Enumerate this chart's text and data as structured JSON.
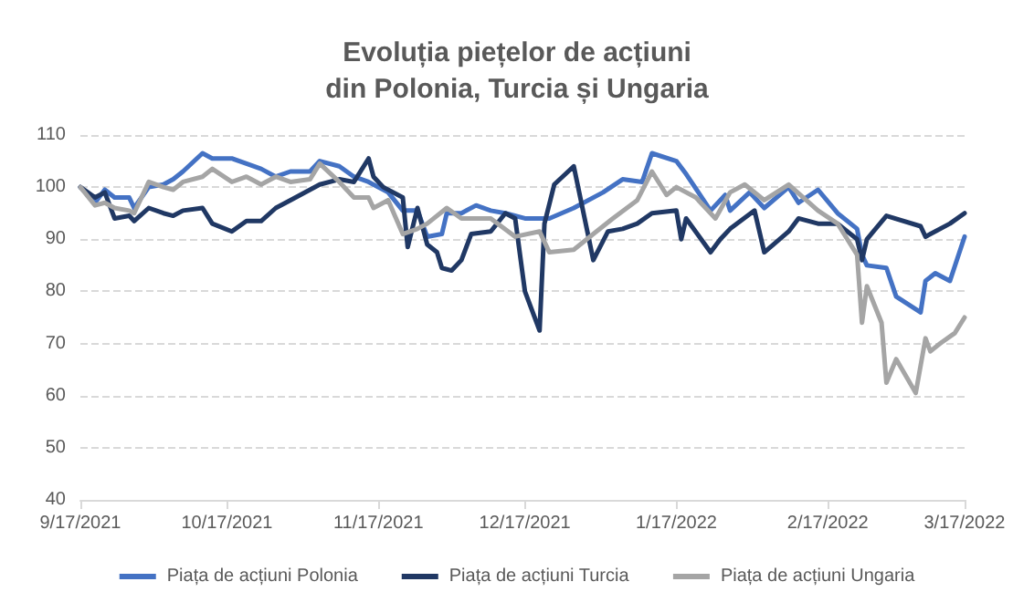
{
  "chart_data": {
    "type": "line",
    "title": "Evoluția piețelor de acțiuni\ndin Polonia, Turcia și Ungaria",
    "xlim": [
      "2021-09-17",
      "2022-03-17"
    ],
    "xticks": [
      {
        "value": "2021-09-17",
        "label": "9/17/2021"
      },
      {
        "value": "2021-10-17",
        "label": "10/17/2021"
      },
      {
        "value": "2021-11-17",
        "label": "11/17/2021"
      },
      {
        "value": "2021-12-17",
        "label": "12/17/2021"
      },
      {
        "value": "2022-01-17",
        "label": "1/17/2022"
      },
      {
        "value": "2022-02-17",
        "label": "2/17/2022"
      },
      {
        "value": "2022-03-17",
        "label": "3/17/2022"
      }
    ],
    "ylim": [
      40,
      110
    ],
    "yticks": [
      40,
      50,
      60,
      70,
      80,
      90,
      100,
      110
    ],
    "grid": "y",
    "legend": "bottom",
    "marker": "none",
    "line_style": "solid",
    "series": [
      {
        "name": "Piața de acțiuni Polonia",
        "color": "#4472c4",
        "x": [
          "2021-09-17",
          "2021-09-20",
          "2021-09-22",
          "2021-09-24",
          "2021-09-27",
          "2021-09-28",
          "2021-10-01",
          "2021-10-04",
          "2021-10-06",
          "2021-10-08",
          "2021-10-12",
          "2021-10-14",
          "2021-10-18",
          "2021-10-21",
          "2021-10-24",
          "2021-10-27",
          "2021-10-30",
          "2021-11-03",
          "2021-11-05",
          "2021-11-09",
          "2021-11-12",
          "2021-11-15",
          "2021-11-19",
          "2021-11-22",
          "2021-11-25",
          "2021-11-27",
          "2021-11-30",
          "2021-12-01",
          "2021-12-04",
          "2021-12-07",
          "2021-12-10",
          "2021-12-13",
          "2021-12-17",
          "2021-12-22",
          "2021-12-27",
          "2022-01-02",
          "2022-01-06",
          "2022-01-10",
          "2022-01-12",
          "2022-01-17",
          "2022-01-19",
          "2022-01-24",
          "2022-01-27",
          "2022-01-28",
          "2022-02-01",
          "2022-02-04",
          "2022-02-09",
          "2022-02-11",
          "2022-02-15",
          "2022-02-19",
          "2022-02-23",
          "2022-02-24",
          "2022-02-25",
          "2022-03-01",
          "2022-03-03",
          "2022-03-08",
          "2022-03-09",
          "2022-03-11",
          "2022-03-14",
          "2022-03-17"
        ],
        "values": [
          100,
          97,
          99.5,
          98,
          98,
          96,
          100,
          100.5,
          101.5,
          103,
          106.5,
          105.5,
          105.5,
          104.5,
          103.5,
          102,
          103,
          103,
          105,
          104,
          102,
          101,
          99,
          95.5,
          95.5,
          90.5,
          91,
          95,
          95,
          96.5,
          95.5,
          95,
          94,
          94,
          96,
          99,
          101.5,
          101,
          106.5,
          105,
          102.5,
          95.5,
          98.5,
          95.5,
          99,
          96,
          100,
          97,
          99.5,
          95,
          92,
          87,
          85,
          84.5,
          79,
          76,
          82,
          83.5,
          82,
          90.5
        ]
      },
      {
        "name": "Piața de acțiuni Turcia",
        "color": "#203864",
        "x": [
          "2021-09-17",
          "2021-09-20",
          "2021-09-22",
          "2021-09-24",
          "2021-09-27",
          "2021-09-28",
          "2021-10-01",
          "2021-10-04",
          "2021-10-06",
          "2021-10-08",
          "2021-10-12",
          "2021-10-14",
          "2021-10-18",
          "2021-10-21",
          "2021-10-24",
          "2021-10-27",
          "2021-10-30",
          "2021-11-03",
          "2021-11-05",
          "2021-11-09",
          "2021-11-12",
          "2021-11-15",
          "2021-11-16",
          "2021-11-18",
          "2021-11-22",
          "2021-11-23",
          "2021-11-25",
          "2021-11-27",
          "2021-11-29",
          "2021-11-30",
          "2021-12-02",
          "2021-12-04",
          "2021-12-06",
          "2021-12-10",
          "2021-12-13",
          "2021-12-15",
          "2021-12-17",
          "2021-12-20",
          "2021-12-21",
          "2021-12-23",
          "2021-12-27",
          "2021-12-31",
          "2022-01-03",
          "2022-01-06",
          "2022-01-09",
          "2022-01-12",
          "2022-01-17",
          "2022-01-18",
          "2022-01-19",
          "2022-01-24",
          "2022-01-26",
          "2022-01-28",
          "2022-02-02",
          "2022-02-04",
          "2022-02-09",
          "2022-02-11",
          "2022-02-15",
          "2022-02-19",
          "2022-02-23",
          "2022-02-24",
          "2022-02-25",
          "2022-03-01",
          "2022-03-08",
          "2022-03-09",
          "2022-03-14",
          "2022-03-17"
        ],
        "values": [
          100,
          98,
          99,
          94,
          94.5,
          93.5,
          96,
          95,
          94.5,
          95.5,
          96,
          93,
          91.5,
          93.5,
          93.5,
          96,
          97.5,
          99.5,
          100.5,
          101.5,
          101,
          105.5,
          102,
          100,
          98,
          88.5,
          96,
          89,
          87.5,
          84.5,
          84,
          86,
          91,
          91.5,
          95,
          94,
          80,
          72.5,
          93,
          100.5,
          104,
          86,
          91.5,
          92,
          93,
          95,
          95.5,
          90,
          94,
          87.5,
          90,
          92,
          95.5,
          87.5,
          91.5,
          94,
          93,
          93,
          90,
          86,
          90,
          94.5,
          92.5,
          90.5,
          93,
          95
        ]
      },
      {
        "name": "Piața de acțiuni Ungaria",
        "color": "#a5a5a5",
        "x": [
          "2021-09-17",
          "2021-09-20",
          "2021-09-22",
          "2021-09-24",
          "2021-09-27",
          "2021-09-28",
          "2021-10-01",
          "2021-10-04",
          "2021-10-06",
          "2021-10-08",
          "2021-10-12",
          "2021-10-14",
          "2021-10-18",
          "2021-10-21",
          "2021-10-24",
          "2021-10-27",
          "2021-10-30",
          "2021-11-03",
          "2021-11-05",
          "2021-11-09",
          "2021-11-12",
          "2021-11-15",
          "2021-11-16",
          "2021-11-19",
          "2021-11-22",
          "2021-11-25",
          "2021-11-27",
          "2021-12-01",
          "2021-12-04",
          "2021-12-10",
          "2021-12-15",
          "2021-12-20",
          "2021-12-22",
          "2021-12-27",
          "2021-12-31",
          "2022-01-04",
          "2022-01-09",
          "2022-01-12",
          "2022-01-15",
          "2022-01-17",
          "2022-01-21",
          "2022-01-25",
          "2022-01-28",
          "2022-01-31",
          "2022-02-04",
          "2022-02-09",
          "2022-02-15",
          "2022-02-19",
          "2022-02-23",
          "2022-02-24",
          "2022-02-25",
          "2022-02-28",
          "2022-03-01",
          "2022-03-03",
          "2022-03-07",
          "2022-03-09",
          "2022-03-10",
          "2022-03-12",
          "2022-03-15",
          "2022-03-17"
        ],
        "values": [
          100,
          96.5,
          97,
          96,
          95.5,
          95,
          101,
          100,
          99.5,
          101,
          102,
          103.5,
          101,
          102,
          100.5,
          102,
          101,
          101.5,
          104.5,
          101,
          98,
          98,
          96,
          97.5,
          91,
          92,
          93,
          96,
          94,
          94,
          90.5,
          91.5,
          87.5,
          88,
          91,
          94,
          97.5,
          103,
          98.5,
          100,
          98,
          94,
          99,
          100.5,
          97.5,
          100.5,
          95.5,
          93,
          87,
          74,
          81,
          74,
          62.5,
          67,
          60.5,
          71,
          68.5,
          70,
          72,
          75
        ]
      }
    ]
  }
}
